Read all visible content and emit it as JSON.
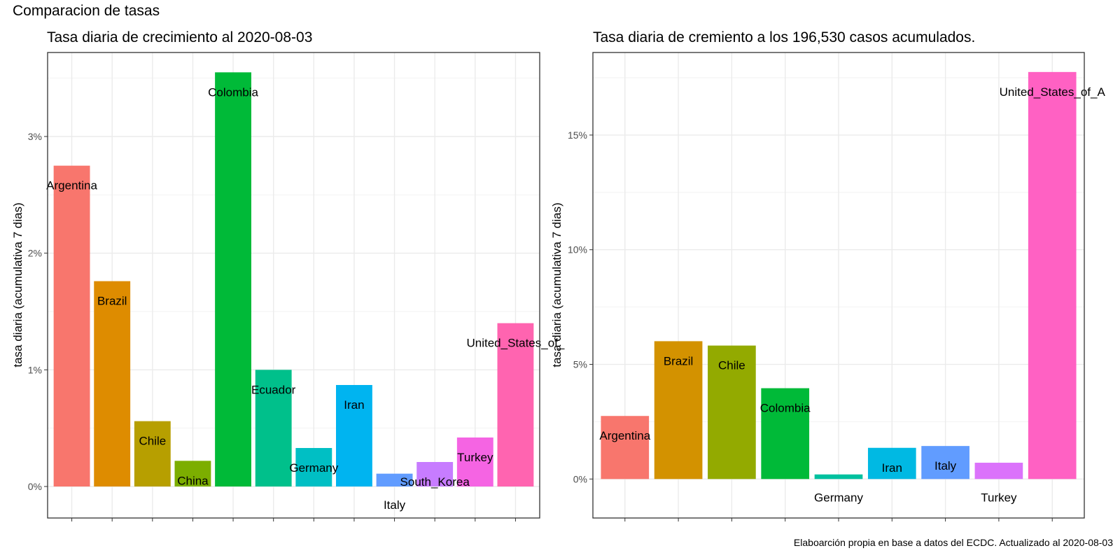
{
  "figure_title": "Comparacion de tasas",
  "caption": "Elaboarción propia en base a datos del ECDC.  Actualizado al  2020-08-03",
  "chart_data": [
    {
      "type": "bar",
      "title": "Tasa diaria de crecimiento al 2020-08-03",
      "xlabel": "",
      "ylabel": "tasa diaria (acumulativa 7 dias)",
      "ylim": [
        -0.0027,
        0.0372
      ],
      "yticks": [
        0,
        0.01,
        0.02,
        0.03
      ],
      "ytick_labels": [
        "0%",
        "1%",
        "2%",
        "3%"
      ],
      "grid": true,
      "legend": "none",
      "categories": [
        "Argentina",
        "Brazil",
        "Chile",
        "China",
        "Colombia",
        "Ecuador",
        "Germany",
        "Iran",
        "Italy",
        "South_Korea",
        "Turkey",
        "United_States_of_America"
      ],
      "values": [
        0.0275,
        0.0176,
        0.0056,
        0.0022,
        0.0355,
        0.01,
        0.0033,
        0.0087,
        0.0011,
        0.0021,
        0.0042,
        0.014
      ],
      "labels": [
        "Argentina",
        "Brazil",
        "Chile",
        "China",
        "Colombia",
        "Ecuador",
        "Germany",
        "Iran",
        "Italy",
        "South_Korea",
        "Turkey",
        "United_States_of_"
      ],
      "colors": [
        "#F8766D",
        "#DE8C00",
        "#B79F00",
        "#7CAE00",
        "#00BA38",
        "#00C08B",
        "#00BFC4",
        "#00B4F0",
        "#619CFF",
        "#C77CFF",
        "#F564E3",
        "#FF64B0"
      ]
    },
    {
      "type": "bar",
      "title": "Tasa diaria de cremiento a los 196,530 casos acumulados.",
      "xlabel": "",
      "ylabel": "tasa diaria (acumulativa 7 dias)",
      "ylim": [
        -0.017,
        0.186
      ],
      "yticks": [
        0,
        0.05,
        0.1,
        0.15
      ],
      "ytick_labels": [
        "0%",
        "5%",
        "10%",
        "15%"
      ],
      "grid": true,
      "legend": "none",
      "categories": [
        "Argentina",
        "Brazil",
        "Chile",
        "Colombia",
        "Germany",
        "Iran",
        "Italy",
        "Turkey",
        "United_States_of_America"
      ],
      "values": [
        0.0275,
        0.0601,
        0.0582,
        0.0396,
        0.002,
        0.0136,
        0.0144,
        0.0071,
        0.1775
      ],
      "labels": [
        "Argentina",
        "Brazil",
        "Chile",
        "Colombia",
        "Germany",
        "Iran",
        "Italy",
        "Turkey",
        "United_States_of_A"
      ],
      "colors": [
        "#F8766D",
        "#D39200",
        "#93AA00",
        "#00BA38",
        "#00C19F",
        "#00B9E3",
        "#619CFF",
        "#DB72FB",
        "#FF61C3"
      ]
    }
  ]
}
